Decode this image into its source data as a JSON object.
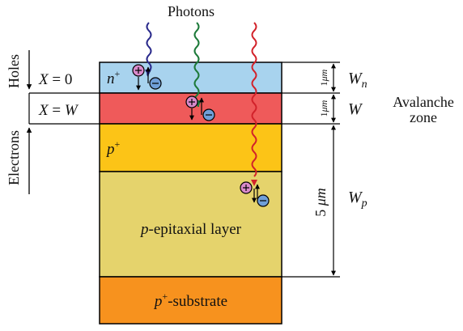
{
  "title": "Photons",
  "layers": {
    "n_plus": {
      "sym": "n",
      "sup": "+",
      "color": "#a8d3ee"
    },
    "avalanche": {
      "color": "#ef5a5a"
    },
    "p_plus": {
      "sym": "p",
      "sup": "+",
      "color": "#fcc417"
    },
    "epitaxial": {
      "sym": "p",
      "rest": "-epitaxial layer",
      "color": "#e5d36c"
    },
    "substrate": {
      "sym": "p",
      "sup": "+",
      "rest": "-substrate",
      "color": "#f7921e"
    }
  },
  "left": {
    "holes": "Holes",
    "electrons": "Electrons",
    "x0": {
      "var": "X",
      "rest": " = 0"
    },
    "xw": {
      "var": "X",
      "eq": " = ",
      "val": "W"
    }
  },
  "right": {
    "dim_top": "1",
    "dim_top_unit": "μm",
    "dim_mid": "1",
    "dim_mid_unit": "μm",
    "dim_big": "5 ",
    "dim_big_unit": "μm",
    "wn": {
      "var": "W",
      "sub": "n"
    },
    "w": {
      "var": "W"
    },
    "wp": {
      "var": "W",
      "sub": "p"
    },
    "zone_line1": "Avalanche",
    "zone_line2": "zone"
  },
  "photons": [
    {
      "name": "blue-photon",
      "color": "#2b2b8c"
    },
    {
      "name": "green-photon",
      "color": "#1d7a3a"
    },
    {
      "name": "red-photon",
      "color": "#d2222a"
    }
  ],
  "carrier_colors": {
    "hole": "#d98acb",
    "electron": "#6f9fd8"
  }
}
